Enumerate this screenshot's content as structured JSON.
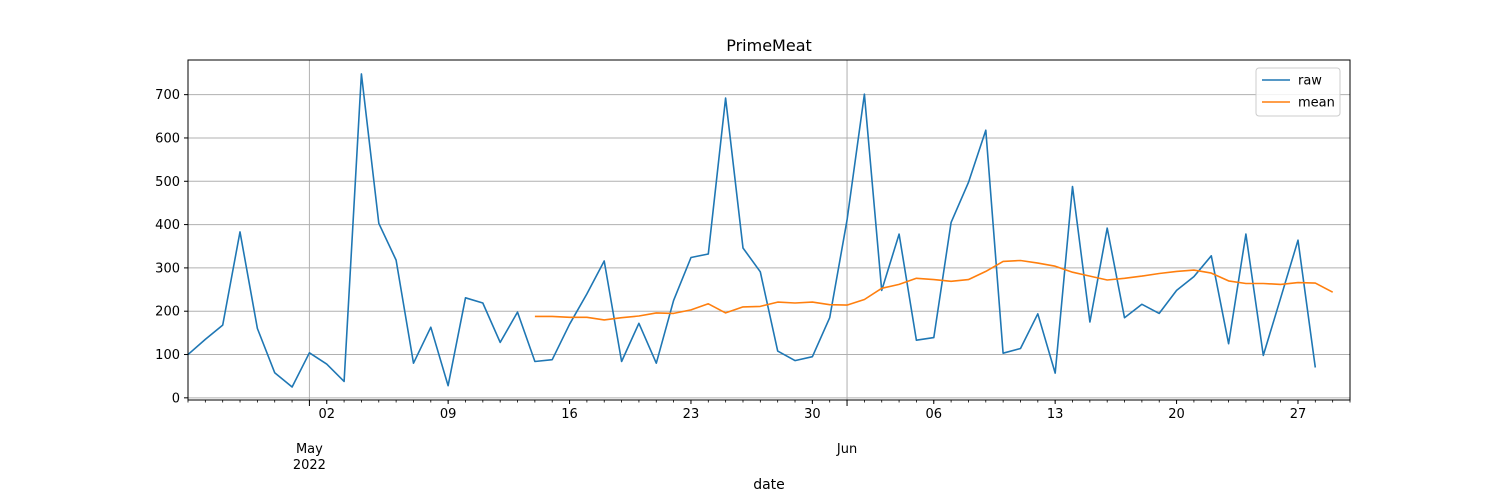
{
  "chart_data": {
    "type": "line",
    "title": "PrimeMeat",
    "xlabel": "date",
    "ylabel": "",
    "ylim": [
      -5,
      780
    ],
    "yticks": [
      0,
      100,
      200,
      300,
      400,
      500,
      600,
      700
    ],
    "xlim": [
      "2022-04-24",
      "2022-06-30"
    ],
    "x_minor_ticks": "daily",
    "x_major_ticks": [
      {
        "date": "2022-05-02",
        "label": "02"
      },
      {
        "date": "2022-05-09",
        "label": "09"
      },
      {
        "date": "2022-05-16",
        "label": "16"
      },
      {
        "date": "2022-05-23",
        "label": "23"
      },
      {
        "date": "2022-05-30",
        "label": "30"
      },
      {
        "date": "2022-06-06",
        "label": "06"
      },
      {
        "date": "2022-06-13",
        "label": "13"
      },
      {
        "date": "2022-06-20",
        "label": "20"
      },
      {
        "date": "2022-06-27",
        "label": "27"
      }
    ],
    "month_labels": [
      {
        "date": "2022-05-01",
        "month": "May",
        "year": "2022"
      },
      {
        "date": "2022-06-01",
        "month": "Jun",
        "year": ""
      }
    ],
    "grid": true,
    "legend_position": "top-right",
    "series": [
      {
        "name": "raw",
        "color": "#1f77b4",
        "start_date": "2022-04-24",
        "values": [
          100,
          135,
          168,
          383,
          160,
          58,
          25,
          104,
          78,
          38,
          748,
          403,
          318,
          80,
          163,
          28,
          231,
          219,
          128,
          198,
          84,
          88,
          170,
          240,
          316,
          84,
          172,
          80,
          225,
          324,
          332,
          692,
          346,
          291,
          108,
          86,
          95,
          185,
          410,
          701,
          248,
          378,
          133,
          139,
          405,
          497,
          618,
          103,
          114,
          194,
          57,
          488,
          175,
          392,
          185,
          216,
          195,
          248,
          280,
          328,
          125,
          378,
          98,
          230,
          364,
          70
        ]
      },
      {
        "name": "mean",
        "color": "#ff7f0e",
        "start_date": "2022-05-14",
        "values": [
          188,
          188,
          186,
          186,
          180,
          185,
          189,
          196,
          195,
          203,
          217,
          196,
          210,
          211,
          221,
          219,
          221,
          215,
          214,
          227,
          253,
          262,
          276,
          273,
          269,
          273,
          292,
          315,
          317,
          311,
          304,
          290,
          281,
          272,
          276,
          281,
          287,
          292,
          295,
          288,
          270,
          264,
          264,
          262,
          266,
          265,
          244
        ]
      }
    ]
  }
}
